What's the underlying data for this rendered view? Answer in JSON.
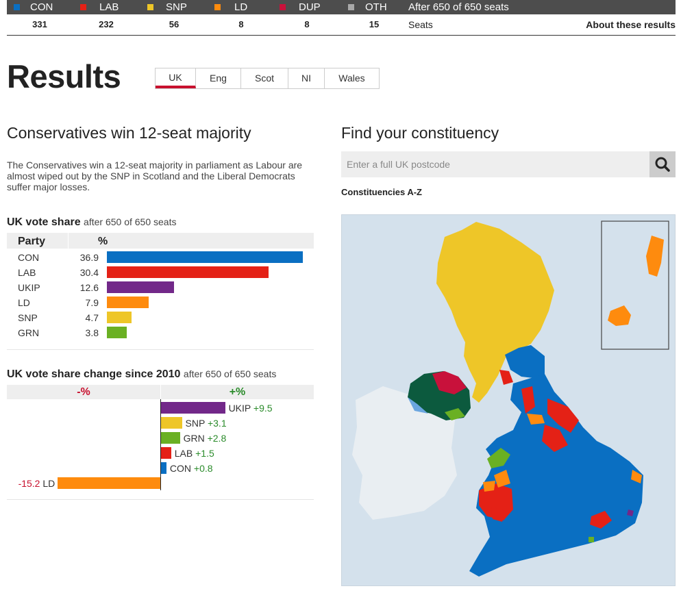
{
  "parties": [
    {
      "key": "con",
      "label": "CON",
      "color": "#0a6fc2",
      "seats": "331"
    },
    {
      "key": "lab",
      "label": "LAB",
      "color": "#e42116",
      "seats": "232"
    },
    {
      "key": "snp",
      "label": "SNP",
      "color": "#eec628",
      "seats": "56"
    },
    {
      "key": "ld",
      "label": "LD",
      "color": "#fe8b0e",
      "seats": "8"
    },
    {
      "key": "dup",
      "label": "DUP",
      "color": "#c8113b",
      "seats": "8"
    },
    {
      "key": "oth",
      "label": "OTH",
      "color": "#a8a8a8",
      "seats": "15"
    }
  ],
  "topbar": {
    "after": "After 650 of 650 seats",
    "seats_label": "Seats",
    "about": "About these results"
  },
  "page": {
    "title": "Results"
  },
  "tabs": [
    {
      "label": "UK",
      "active": true
    },
    {
      "label": "Eng",
      "active": false
    },
    {
      "label": "Scot",
      "active": false
    },
    {
      "label": "NI",
      "active": false
    },
    {
      "label": "Wales",
      "active": false
    }
  ],
  "headline": "Conservatives win 12-seat majority",
  "summary": "The Conservatives win a 12-seat majority in parliament as Labour are almost wiped out by the SNP in Scotland and the Liberal Democrats suffer major losses.",
  "vote_share": {
    "title": "UK vote share",
    "subtitle": "after 650 of 650 seats",
    "col_party": "Party",
    "col_pct": "%",
    "rows": [
      {
        "party": "CON",
        "value": "36.9",
        "color": "#0a6fc2"
      },
      {
        "party": "LAB",
        "value": "30.4",
        "color": "#e42116"
      },
      {
        "party": "UKIP",
        "value": "12.6",
        "color": "#722889"
      },
      {
        "party": "LD",
        "value": "7.9",
        "color": "#fe8b0e"
      },
      {
        "party": "SNP",
        "value": "4.7",
        "color": "#eec628"
      },
      {
        "party": "GRN",
        "value": "3.8",
        "color": "#6ab023"
      }
    ]
  },
  "vote_change": {
    "title": "UK vote share change since 2010",
    "subtitle": "after 650 of 650 seats",
    "neg_label": "-%",
    "pos_label": "+%",
    "rows": [
      {
        "party": "UKIP",
        "change": "+9.5",
        "value": 9.5,
        "color": "#722889"
      },
      {
        "party": "SNP",
        "change": "+3.1",
        "value": 3.1,
        "color": "#eec628"
      },
      {
        "party": "GRN",
        "change": "+2.8",
        "value": 2.8,
        "color": "#6ab023"
      },
      {
        "party": "LAB",
        "change": "+1.5",
        "value": 1.5,
        "color": "#e42116"
      },
      {
        "party": "CON",
        "change": "+0.8",
        "value": 0.8,
        "color": "#0a6fc2"
      },
      {
        "party": "LD",
        "change": "-15.2",
        "value": -15.2,
        "color": "#fe8b0e"
      }
    ]
  },
  "constituency": {
    "title": "Find your constituency",
    "search_placeholder": "Enter a full UK postcode",
    "az_link": "Constituencies A-Z"
  },
  "map": {
    "sea_color": "#d4e1ec",
    "ireland_color": "#e9eef2"
  },
  "icons": {
    "search": "search-icon"
  }
}
